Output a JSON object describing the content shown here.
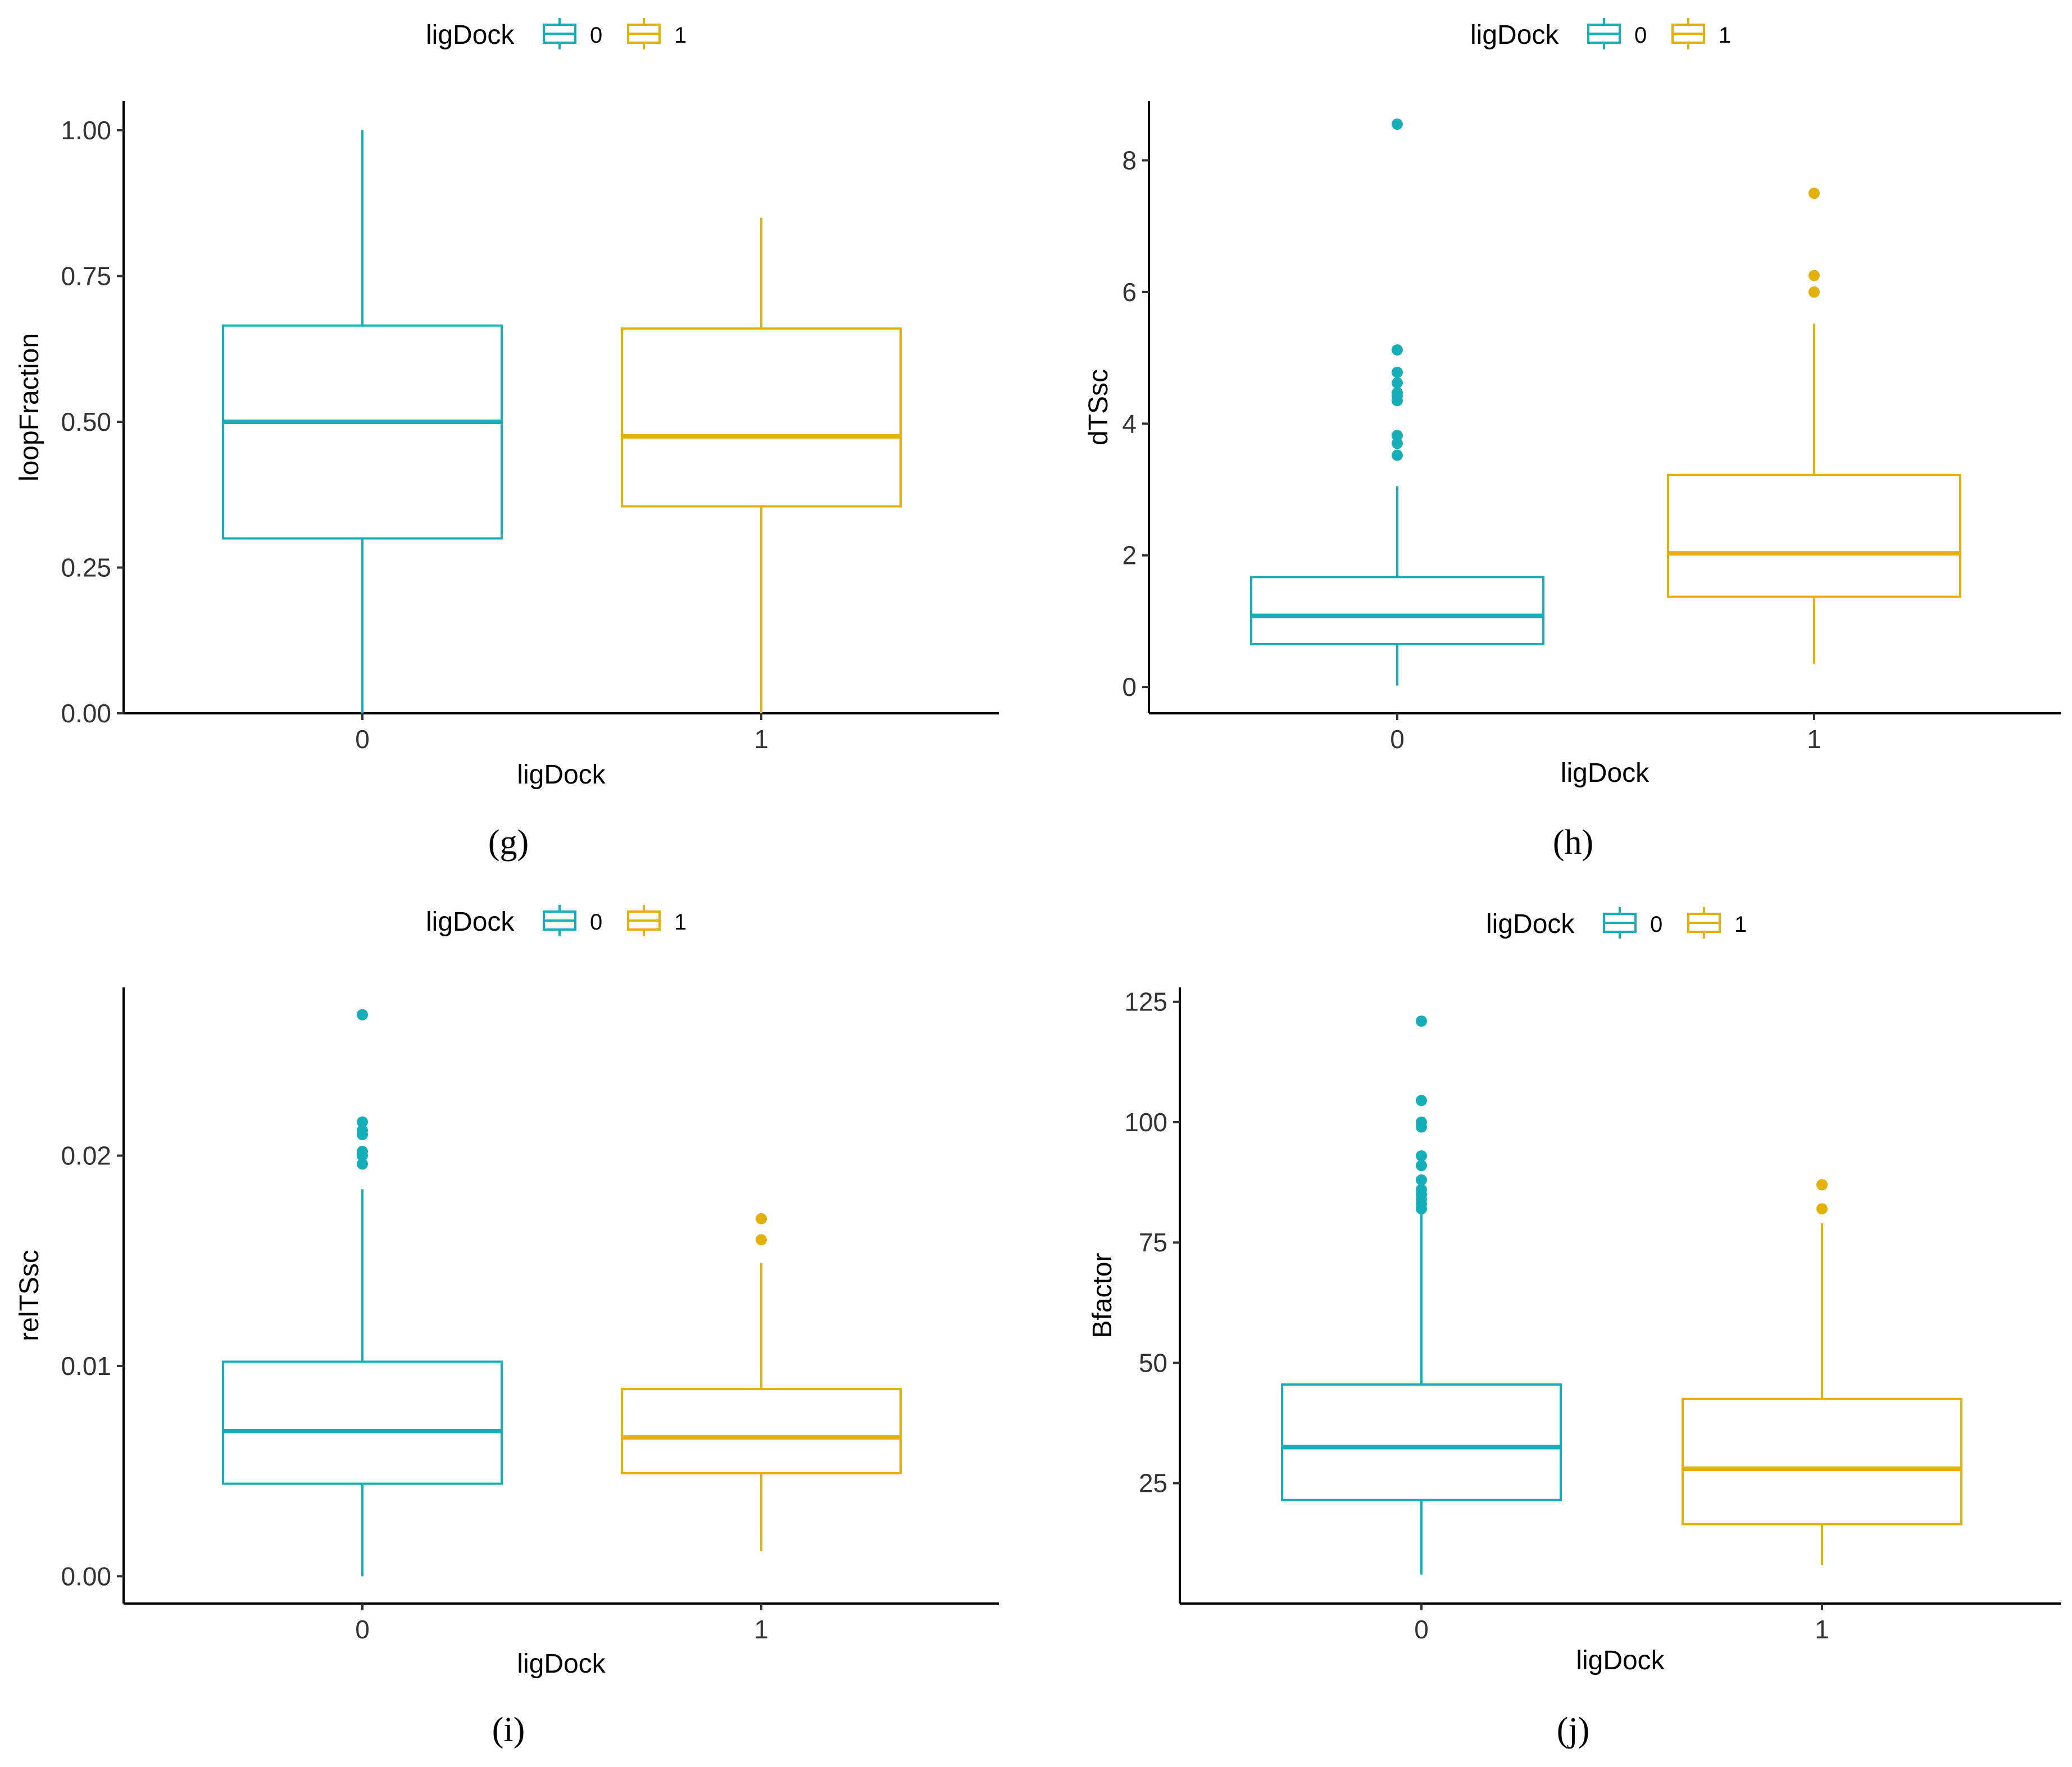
{
  "colors": {
    "level0": "#16AEB8",
    "level1": "#E4B00B"
  },
  "chart_data": [
    {
      "type": "boxplot",
      "panel_label": "(g)",
      "legend": {
        "title": "ligDock",
        "entries": [
          "0",
          "1"
        ]
      },
      "xlabel": "ligDock",
      "ylabel": "loopFraction",
      "categories": [
        "0",
        "1"
      ],
      "ylim": [
        0,
        1.05
      ],
      "yticks": [
        0,
        0.25,
        0.5,
        0.75,
        1.0
      ],
      "ytick_labels": [
        "0.00",
        "0.25",
        "0.50",
        "0.75",
        "1.00"
      ],
      "boxes": [
        {
          "category": "0",
          "whisker_low": 0.0,
          "q1": 0.3,
          "median": 0.5,
          "q3": 0.665,
          "whisker_high": 1.0,
          "outliers": []
        },
        {
          "category": "1",
          "whisker_low": 0.0,
          "q1": 0.355,
          "median": 0.475,
          "q3": 0.66,
          "whisker_high": 0.85,
          "outliers": []
        }
      ]
    },
    {
      "type": "boxplot",
      "panel_label": "(h)",
      "legend": {
        "title": "ligDock",
        "entries": [
          "0",
          "1"
        ]
      },
      "xlabel": "ligDock",
      "ylabel": "dTSsc",
      "categories": [
        "0",
        "1"
      ],
      "ylim": [
        -0.4,
        8.9
      ],
      "yticks": [
        0,
        2,
        4,
        6,
        8
      ],
      "ytick_labels": [
        "0",
        "2",
        "4",
        "6",
        "8"
      ],
      "boxes": [
        {
          "category": "0",
          "whisker_low": 0.02,
          "q1": 0.65,
          "median": 1.08,
          "q3": 1.67,
          "whisker_high": 3.05,
          "outliers": [
            3.52,
            3.7,
            3.82,
            4.35,
            4.42,
            4.47,
            4.62,
            4.78,
            5.12,
            8.55
          ]
        },
        {
          "category": "1",
          "whisker_low": 0.35,
          "q1": 1.37,
          "median": 2.03,
          "q3": 3.22,
          "whisker_high": 5.52,
          "outliers": [
            6.0,
            6.25,
            7.5
          ]
        }
      ]
    },
    {
      "type": "boxplot",
      "panel_label": "(i)",
      "legend": {
        "title": "ligDock",
        "entries": [
          "0",
          "1"
        ]
      },
      "xlabel": "ligDock",
      "ylabel": "relTSsc",
      "categories": [
        "0",
        "1"
      ],
      "ylim": [
        -0.0013,
        0.028
      ],
      "yticks": [
        0,
        0.01,
        0.02
      ],
      "ytick_labels": [
        "0.00",
        "0.01",
        "0.02"
      ],
      "boxes": [
        {
          "category": "0",
          "whisker_low": 0.0,
          "q1": 0.0044,
          "median": 0.0069,
          "q3": 0.0102,
          "whisker_high": 0.0184,
          "outliers": [
            0.0196,
            0.02,
            0.0202,
            0.021,
            0.0212,
            0.0216,
            0.0267
          ]
        },
        {
          "category": "1",
          "whisker_low": 0.0012,
          "q1": 0.0049,
          "median": 0.0066,
          "q3": 0.0089,
          "whisker_high": 0.0149,
          "outliers": [
            0.016,
            0.017
          ]
        }
      ]
    },
    {
      "type": "boxplot",
      "panel_label": "(j)",
      "legend": {
        "title": "ligDock",
        "entries": [
          "0",
          "1"
        ]
      },
      "xlabel": "ligDock",
      "ylabel": "Bfactor",
      "categories": [
        "0",
        "1"
      ],
      "ylim": [
        0,
        128
      ],
      "yticks": [
        25,
        50,
        75,
        100,
        125
      ],
      "ytick_labels": [
        "25",
        "50",
        "75",
        "100",
        "125"
      ],
      "boxes": [
        {
          "category": "0",
          "whisker_low": 6,
          "q1": 21.5,
          "median": 32.5,
          "q3": 45.5,
          "whisker_high": 81,
          "outliers": [
            82,
            83,
            84,
            85,
            86,
            88,
            91,
            93,
            99,
            100,
            104.5,
            121
          ]
        },
        {
          "category": "1",
          "whisker_low": 8,
          "q1": 16.5,
          "median": 28,
          "q3": 42.5,
          "whisker_high": 79,
          "outliers": [
            82,
            87
          ]
        }
      ]
    }
  ]
}
